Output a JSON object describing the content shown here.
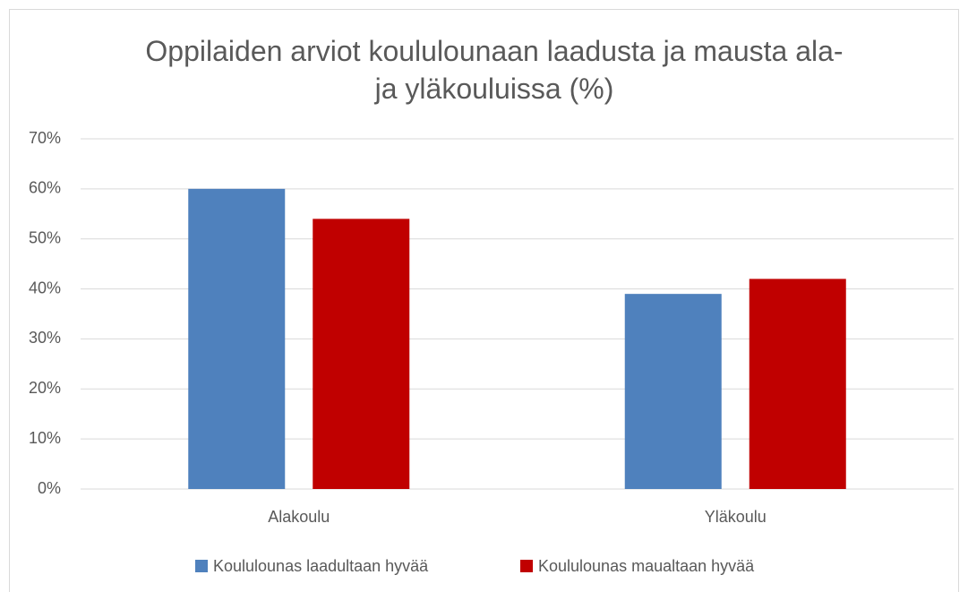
{
  "chart_data": {
    "type": "bar",
    "title": "Oppilaiden arviot koululounaan laadusta ja mausta ala-\nja yläkouluissa (%)",
    "categories": [
      "Alakoulu",
      "Yläkoulu"
    ],
    "series": [
      {
        "name": "Koululounas laadultaan hyvää",
        "color": "#4f81bd",
        "values": [
          60,
          39
        ]
      },
      {
        "name": "Koululounas maualtaan hyvää",
        "color": "#c00000",
        "values": [
          54,
          42
        ]
      }
    ],
    "ylim": [
      0,
      70
    ],
    "yticks": [
      {
        "value": 0,
        "label": "0%"
      },
      {
        "value": 10,
        "label": "10%"
      },
      {
        "value": 20,
        "label": "20%"
      },
      {
        "value": 30,
        "label": "30%"
      },
      {
        "value": 40,
        "label": "40%"
      },
      {
        "value": 50,
        "label": "50%"
      },
      {
        "value": 60,
        "label": "60%"
      },
      {
        "value": 70,
        "label": "70%"
      }
    ],
    "grid": true,
    "legend": "bottom"
  }
}
